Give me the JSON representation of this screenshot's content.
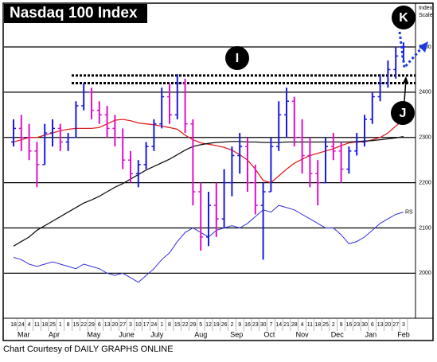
{
  "chart_data": {
    "type": "ohlc",
    "title": "Nasdaq 100 Index",
    "footer": "Chart Courtesy of DAILY GRAPHS ONLINE",
    "scale_label": [
      "Index",
      "Scale"
    ],
    "rs_label": "RS",
    "annotations": [
      "I",
      "J",
      "K"
    ],
    "categories": [
      "18",
      "24",
      "4",
      "11",
      "18",
      "25",
      "1",
      "8",
      "15",
      "22",
      "29",
      "6",
      "13",
      "20",
      "27",
      "3",
      "10",
      "17",
      "24",
      "1",
      "8",
      "15",
      "22",
      "29",
      "5",
      "12",
      "19",
      "26",
      "2",
      "9",
      "16",
      "23",
      "30",
      "7",
      "14",
      "21",
      "28",
      "4",
      "11",
      "18",
      "25",
      "2",
      "9",
      "16",
      "23",
      "30",
      "6",
      "13",
      "20",
      "27",
      "3"
    ],
    "months": [
      "Mar",
      "Apr",
      "May",
      "June",
      "July",
      "Aug",
      "Sep",
      "Oct",
      "Nov",
      "Dec",
      "Jan",
      "Feb"
    ],
    "ylim": [
      1904,
      2551
    ],
    "yticks": [
      2000,
      2100,
      2200,
      2300,
      2400,
      2500
    ],
    "grid": true,
    "up_color": "#1a1ae0",
    "down_color": "#e010c8",
    "resistance": [
      2437,
      2420
    ],
    "high": [
      2340,
      2350,
      2330,
      2290,
      2330,
      2340,
      2330,
      2310,
      2380,
      2420,
      2410,
      2380,
      2370,
      2350,
      2320,
      2270,
      2250,
      2290,
      2340,
      2410,
      2420,
      2440,
      2430,
      2340,
      2200,
      2180,
      2200,
      2230,
      2280,
      2310,
      2300,
      2240,
      2200,
      2300,
      2380,
      2410,
      2390,
      2340,
      2300,
      2250,
      2300,
      2310,
      2290,
      2280,
      2310,
      2350,
      2400,
      2440,
      2470,
      2500,
      2510
    ],
    "low": [
      2280,
      2270,
      2250,
      2190,
      2240,
      2280,
      2270,
      2270,
      2300,
      2360,
      2340,
      2330,
      2300,
      2280,
      2230,
      2200,
      2190,
      2230,
      2270,
      2320,
      2330,
      2340,
      2310,
      2150,
      2050,
      2060,
      2080,
      2100,
      2170,
      2220,
      2180,
      2130,
      2030,
      2180,
      2270,
      2300,
      2280,
      2220,
      2190,
      2150,
      2200,
      2250,
      2200,
      2220,
      2260,
      2280,
      2330,
      2380,
      2410,
      2430,
      2470
    ],
    "open": [
      2290,
      2320,
      2300,
      2270,
      2240,
      2310,
      2320,
      2290,
      2300,
      2370,
      2400,
      2360,
      2350,
      2320,
      2300,
      2250,
      2220,
      2240,
      2280,
      2330,
      2390,
      2350,
      2420,
      2330,
      2180,
      2080,
      2150,
      2120,
      2200,
      2260,
      2280,
      2200,
      2150,
      2180,
      2280,
      2350,
      2380,
      2300,
      2260,
      2220,
      2200,
      2280,
      2270,
      2230,
      2270,
      2290,
      2340,
      2390,
      2420,
      2450,
      2480
    ],
    "close": [
      2320,
      2300,
      2270,
      2240,
      2310,
      2320,
      2290,
      2300,
      2370,
      2400,
      2360,
      2350,
      2320,
      2300,
      2250,
      2220,
      2240,
      2280,
      2330,
      2390,
      2350,
      2420,
      2330,
      2180,
      2080,
      2150,
      2120,
      2200,
      2260,
      2280,
      2200,
      2150,
      2180,
      2280,
      2350,
      2380,
      2300,
      2260,
      2220,
      2200,
      2280,
      2270,
      2230,
      2270,
      2290,
      2340,
      2390,
      2420,
      2450,
      2480,
      2500
    ],
    "lines": [
      {
        "color": "#e02020",
        "values": [
          2290,
          2295,
          2300,
          2300,
          2305,
          2310,
          2315,
          2318,
          2320,
          2320,
          2320,
          2322,
          2330,
          2338,
          2340,
          2337,
          2332,
          2330,
          2328,
          2325,
          2322,
          2318,
          2305,
          2295,
          2288,
          2285,
          2282,
          2278,
          2272,
          2262,
          2250,
          2230,
          2205,
          2200,
          2215,
          2230,
          2243,
          2252,
          2260,
          2265,
          2270,
          2275,
          2282,
          2288,
          2290,
          2290,
          2295,
          2300,
          2310,
          2325,
          2340
        ]
      },
      {
        "color": "#111111",
        "values": [
          2060,
          2070,
          2080,
          2095,
          2105,
          2115,
          2125,
          2135,
          2145,
          2155,
          2162,
          2170,
          2180,
          2190,
          2198,
          2208,
          2218,
          2228,
          2236,
          2244,
          2252,
          2262,
          2272,
          2280,
          2284,
          2287,
          2289,
          2290,
          2291,
          2291,
          2290,
          2290,
          2289,
          2289,
          2289,
          2290,
          2290,
          2290,
          2290,
          2290,
          2290,
          2290,
          2290,
          2290,
          2291,
          2292,
          2293,
          2295,
          2297,
          2299,
          2302
        ]
      },
      {
        "color": "#3030d8",
        "values": [
          2035,
          2030,
          2020,
          2015,
          2020,
          2025,
          2020,
          2015,
          2010,
          2020,
          2015,
          2010,
          2000,
          1995,
          2000,
          1990,
          1980,
          1995,
          2010,
          2030,
          2045,
          2070,
          2090,
          2100,
          2090,
          2080,
          2095,
          2100,
          2105,
          2100,
          2110,
          2125,
          2140,
          2135,
          2150,
          2145,
          2140,
          2130,
          2120,
          2110,
          2100,
          2100,
          2085,
          2065,
          2070,
          2080,
          2095,
          2110,
          2120,
          2130,
          2135
        ]
      }
    ]
  }
}
